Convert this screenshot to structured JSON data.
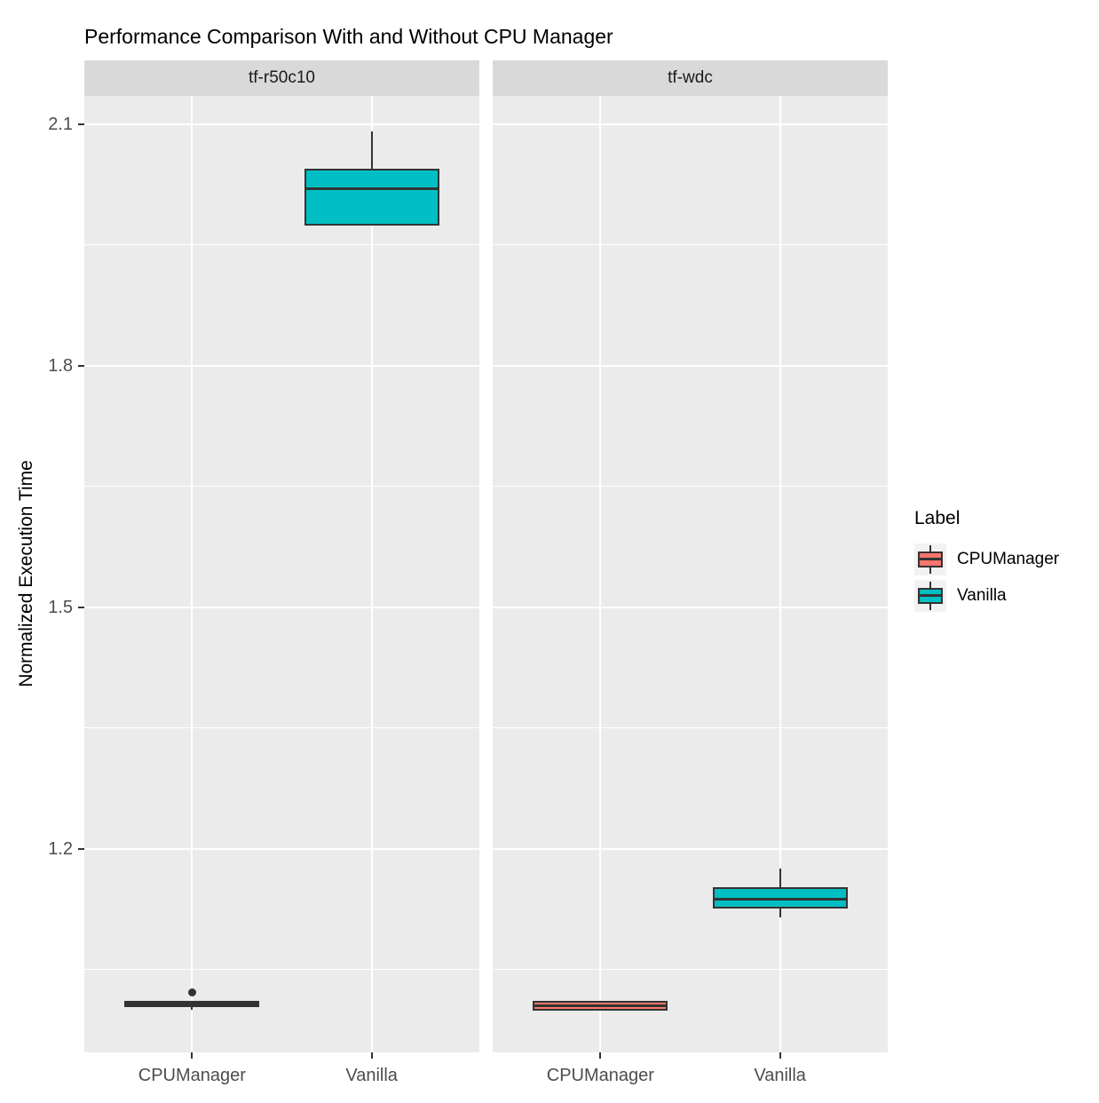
{
  "chart_data": {
    "type": "boxplot",
    "title": "Performance Comparison With and Without CPU Manager",
    "ylabel": "Normalized Execution Time",
    "xlabel": "",
    "grid": true,
    "legend_position": "right",
    "legend": {
      "title": "Label",
      "entries": [
        {
          "label": "CPUManager",
          "color": "#F8766D"
        },
        {
          "label": "Vanilla",
          "color": "#00BFC4"
        }
      ]
    },
    "x_categories": [
      "CPUManager",
      "Vanilla"
    ],
    "y_axis": {
      "ticks": [
        2.1,
        1.8,
        1.5,
        1.2
      ],
      "minor_ticks": [
        1.95,
        1.65,
        1.35,
        1.05
      ],
      "range": [
        0.947,
        2.135
      ]
    },
    "facets": [
      {
        "label": "tf-r50c10",
        "boxes": [
          {
            "group": "CPUManager",
            "color": "#F8766D",
            "whisker_low": 1.0,
            "q1": 1.004,
            "median": 1.007,
            "q3": 1.011,
            "whisker_high": 1.012,
            "outliers": [
              1.021
            ]
          },
          {
            "group": "Vanilla",
            "color": "#00BFC4",
            "whisker_low": 1.974,
            "q1": 1.974,
            "median": 2.02,
            "q3": 2.045,
            "whisker_high": 2.091,
            "outliers": []
          }
        ]
      },
      {
        "label": "tf-wdc",
        "boxes": [
          {
            "group": "CPUManager",
            "color": "#F8766D",
            "whisker_low": 0.998,
            "q1": 0.999,
            "median": 1.005,
            "q3": 1.011,
            "whisker_high": 1.012,
            "outliers": []
          },
          {
            "group": "Vanilla",
            "color": "#00BFC4",
            "whisker_low": 1.115,
            "q1": 1.126,
            "median": 1.137,
            "q3": 1.152,
            "whisker_high": 1.175,
            "outliers": []
          }
        ]
      }
    ],
    "styles": {
      "panel_bg": "#EBEBEB",
      "strip_bg": "#D9D9D9",
      "grid_color": "#FFFFFF",
      "box_border": "#333333",
      "tick_color": "#333333",
      "tick_label_color": "#4D4D4D",
      "legend_key_bg": "#F2F2F2"
    }
  }
}
